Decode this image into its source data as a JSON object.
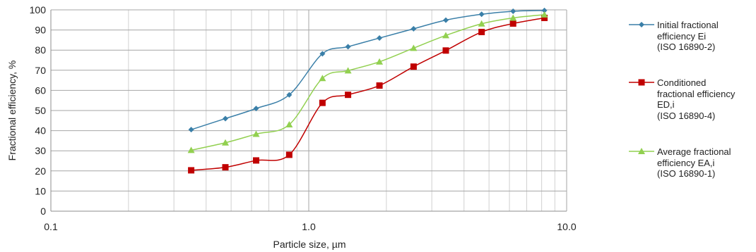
{
  "chart_data": {
    "type": "line",
    "xlabel": "Particle size, µm",
    "ylabel": "Fractional efficiency, %",
    "x_scale": "log",
    "xlim": [
      0.1,
      10
    ],
    "ylim": [
      0,
      100
    ],
    "x_ticks": [
      0.1,
      1,
      10
    ],
    "x_tick_labels": [
      "0.1",
      "1.0",
      "10.0"
    ],
    "y_ticks": [
      0,
      10,
      20,
      30,
      40,
      50,
      60,
      70,
      80,
      90,
      100
    ],
    "grid": true,
    "legend_position": "right",
    "x": [
      0.35,
      0.475,
      0.625,
      0.84,
      1.13,
      1.42,
      1.88,
      2.55,
      3.4,
      4.68,
      6.2,
      8.2
    ],
    "series": [
      {
        "name": "Initial fractional efficiency Ei (ISO 16890-2)",
        "legend_lines": [
          "Initial fractional",
          "efficiency Ei",
          "(ISO 16890-2)"
        ],
        "color": "#3a7fa8",
        "marker": "diamond",
        "values": [
          40.5,
          46,
          51,
          57.8,
          78.2,
          81.7,
          86,
          90.6,
          94.9,
          97.8,
          99.3,
          99.7
        ]
      },
      {
        "name": "Conditioned fractional efficiency ED,i (ISO 16890-4)",
        "legend_lines": [
          "Conditioned",
          "fractional efficiency",
          "ED,i",
          "(ISO 16890-4)"
        ],
        "color": "#c00000",
        "marker": "square",
        "values": [
          20.3,
          21.8,
          25.2,
          28,
          53.8,
          57.8,
          62.4,
          71.8,
          79.8,
          89,
          93.2,
          96
        ]
      },
      {
        "name": "Average fractional efficiency EA,i (ISO 16890-1)",
        "legend_lines": [
          "Average fractional",
          "efficiency EA,i",
          "(ISO 16890-1)"
        ],
        "color": "#92d050",
        "marker": "triangle",
        "values": [
          30.3,
          34,
          38.3,
          43,
          66,
          69.8,
          74.2,
          81,
          87.3,
          93.1,
          96,
          97.6
        ]
      }
    ]
  }
}
